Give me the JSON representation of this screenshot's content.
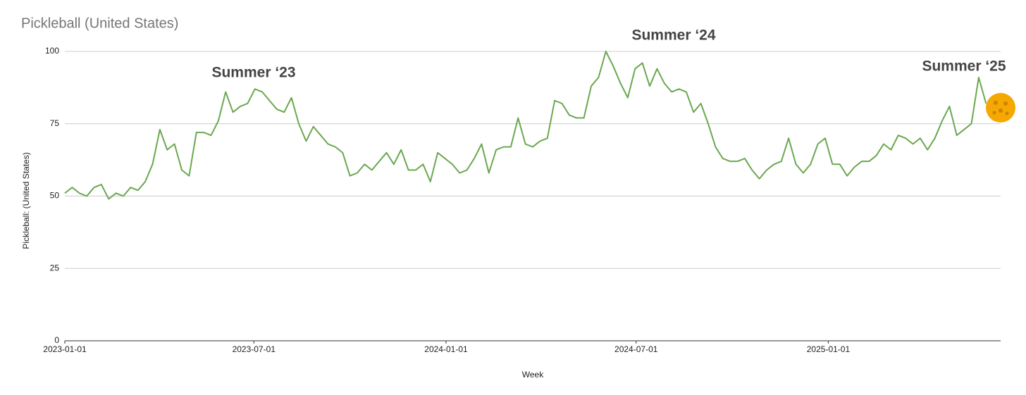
{
  "chart_data": {
    "type": "line",
    "title": "Pickleball (United States)",
    "x_label": "Week",
    "y_label": "Pickleball: (United States)",
    "annotations": [
      "Summer ‘23",
      "Summer ‘24",
      "Summer ‘25"
    ],
    "x": [
      "2023-01-01",
      "2023-01-08",
      "2023-01-15",
      "2023-01-22",
      "2023-01-29",
      "2023-02-05",
      "2023-02-12",
      "2023-02-19",
      "2023-02-26",
      "2023-03-05",
      "2023-03-12",
      "2023-03-19",
      "2023-03-26",
      "2023-04-02",
      "2023-04-09",
      "2023-04-16",
      "2023-04-23",
      "2023-04-30",
      "2023-05-07",
      "2023-05-14",
      "2023-05-21",
      "2023-05-28",
      "2023-06-04",
      "2023-06-11",
      "2023-06-18",
      "2023-06-25",
      "2023-07-02",
      "2023-07-09",
      "2023-07-16",
      "2023-07-23",
      "2023-07-30",
      "2023-08-06",
      "2023-08-13",
      "2023-08-20",
      "2023-08-27",
      "2023-09-03",
      "2023-09-10",
      "2023-09-17",
      "2023-09-24",
      "2023-10-01",
      "2023-10-08",
      "2023-10-15",
      "2023-10-22",
      "2023-10-29",
      "2023-11-05",
      "2023-11-12",
      "2023-11-19",
      "2023-11-26",
      "2023-12-03",
      "2023-12-10",
      "2023-12-17",
      "2023-12-24",
      "2023-12-31",
      "2024-01-07",
      "2024-01-14",
      "2024-01-21",
      "2024-01-28",
      "2024-02-04",
      "2024-02-11",
      "2024-02-18",
      "2024-02-25",
      "2024-03-03",
      "2024-03-10",
      "2024-03-17",
      "2024-03-24",
      "2024-03-31",
      "2024-04-07",
      "2024-04-14",
      "2024-04-21",
      "2024-04-28",
      "2024-05-05",
      "2024-05-12",
      "2024-05-19",
      "2024-05-26",
      "2024-06-02",
      "2024-06-09",
      "2024-06-16",
      "2024-06-23",
      "2024-06-30",
      "2024-07-07",
      "2024-07-14",
      "2024-07-21",
      "2024-07-28",
      "2024-08-04",
      "2024-08-11",
      "2024-08-18",
      "2024-08-25",
      "2024-09-01",
      "2024-09-08",
      "2024-09-15",
      "2024-09-22",
      "2024-09-29",
      "2024-10-06",
      "2024-10-13",
      "2024-10-20",
      "2024-10-27",
      "2024-11-03",
      "2024-11-10",
      "2024-11-17",
      "2024-11-24",
      "2024-12-01",
      "2024-12-08",
      "2024-12-15",
      "2024-12-22",
      "2024-12-29",
      "2025-01-05",
      "2025-01-12",
      "2025-01-19",
      "2025-01-26",
      "2025-02-02",
      "2025-02-09",
      "2025-02-16",
      "2025-02-23",
      "2025-03-02",
      "2025-03-09",
      "2025-03-16",
      "2025-03-23",
      "2025-03-30",
      "2025-04-06",
      "2025-04-13",
      "2025-04-20",
      "2025-04-27",
      "2025-05-04",
      "2025-05-11",
      "2025-05-18",
      "2025-05-25",
      "2025-06-01"
    ],
    "series": [
      {
        "name": "Pickleball: (United States)",
        "color": "#6aa84f",
        "values": [
          51,
          53,
          51,
          50,
          53,
          54,
          49,
          51,
          50,
          53,
          52,
          55,
          61,
          73,
          66,
          68,
          59,
          57,
          72,
          72,
          71,
          76,
          86,
          79,
          81,
          82,
          87,
          86,
          83,
          80,
          79,
          84,
          75,
          69,
          74,
          71,
          68,
          67,
          65,
          57,
          58,
          61,
          59,
          62,
          65,
          61,
          66,
          59,
          59,
          61,
          55,
          65,
          63,
          61,
          58,
          59,
          63,
          68,
          58,
          66,
          67,
          67,
          77,
          68,
          67,
          69,
          70,
          83,
          82,
          78,
          77,
          77,
          88,
          91,
          100,
          95,
          89,
          84,
          94,
          96,
          88,
          94,
          89,
          86,
          87,
          86,
          79,
          82,
          75,
          67,
          63,
          62,
          62,
          63,
          59,
          56,
          59,
          61,
          62,
          70,
          61,
          58,
          61,
          68,
          70,
          61,
          61,
          57,
          60,
          62,
          62,
          64,
          68,
          66,
          71,
          70,
          68,
          70,
          66,
          70,
          76,
          81,
          71,
          73,
          75,
          91,
          82
        ]
      }
    ],
    "xlim": [
      "2023-01-01",
      "2025-06-15"
    ],
    "xticks": [
      "2023-01-01",
      "2023-07-01",
      "2024-01-01",
      "2024-07-01",
      "2025-01-01"
    ],
    "ylim": [
      0,
      100
    ],
    "yticks": [
      0,
      25,
      50,
      75,
      100
    ],
    "grid": true
  }
}
